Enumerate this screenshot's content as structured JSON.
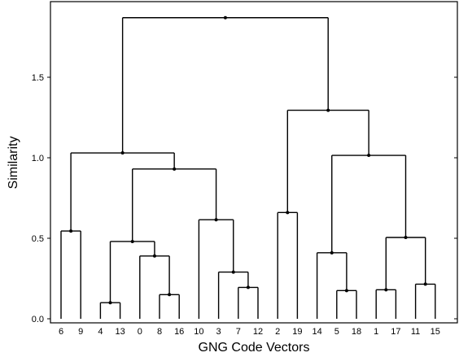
{
  "chart_data": {
    "type": "dendrogram",
    "xlabel": "GNG Code Vectors",
    "ylabel": "Similarity",
    "ylim": [
      0.0,
      1.9
    ],
    "yticks": [
      0.0,
      0.5,
      1.0,
      1.5
    ],
    "ytick_labels": [
      "0.0",
      "0.5",
      "1.0",
      "1.5"
    ],
    "grid": false,
    "leaf_order": [
      "6",
      "9",
      "4",
      "13",
      "0",
      "8",
      "16",
      "10",
      "3",
      "7",
      "12",
      "2",
      "19",
      "14",
      "5",
      "18",
      "1",
      "17",
      "11",
      "15"
    ],
    "merges": [
      {
        "id": "m_4_13",
        "left": "4",
        "right": "13",
        "height": 0.1
      },
      {
        "id": "m_8_16",
        "left": "8",
        "right": "16",
        "height": 0.15
      },
      {
        "id": "m_5_18",
        "left": "5",
        "right": "18",
        "height": 0.175
      },
      {
        "id": "m_1_17",
        "left": "1",
        "right": "17",
        "height": 0.18
      },
      {
        "id": "m_7_12",
        "left": "7",
        "right": "12",
        "height": 0.195
      },
      {
        "id": "m_11_15",
        "left": "11",
        "right": "15",
        "height": 0.215
      },
      {
        "id": "m_3_712",
        "left": "3",
        "right": "m_7_12",
        "height": 0.29
      },
      {
        "id": "m_0_816",
        "left": "0",
        "right": "m_8_16",
        "height": 0.39
      },
      {
        "id": "m_14_518",
        "left": "14",
        "right": "m_5_18",
        "height": 0.41
      },
      {
        "id": "m_413_0816",
        "left": "m_4_13",
        "right": "m_0_816",
        "height": 0.48
      },
      {
        "id": "m_117_1115",
        "left": "m_1_17",
        "right": "m_11_15",
        "height": 0.505
      },
      {
        "id": "m_6_9",
        "left": "6",
        "right": "9",
        "height": 0.545
      },
      {
        "id": "m_10_3712",
        "left": "10",
        "right": "m_3_712",
        "height": 0.615
      },
      {
        "id": "m_2_19",
        "left": "2",
        "right": "19",
        "height": 0.66
      },
      {
        "id": "m_mid_left",
        "left": "m_413_0816",
        "right": "m_10_3712",
        "height": 0.93
      },
      {
        "id": "m_mid_right",
        "left": "m_14_518",
        "right": "m_117_1115",
        "height": 1.015
      },
      {
        "id": "m_left",
        "left": "m_6_9",
        "right": "m_mid_left",
        "height": 1.03
      },
      {
        "id": "m_right",
        "left": "m_2_19",
        "right": "m_mid_right",
        "height": 1.295
      },
      {
        "id": "m_root",
        "left": "m_left",
        "right": "m_right",
        "height": 1.87
      }
    ]
  }
}
